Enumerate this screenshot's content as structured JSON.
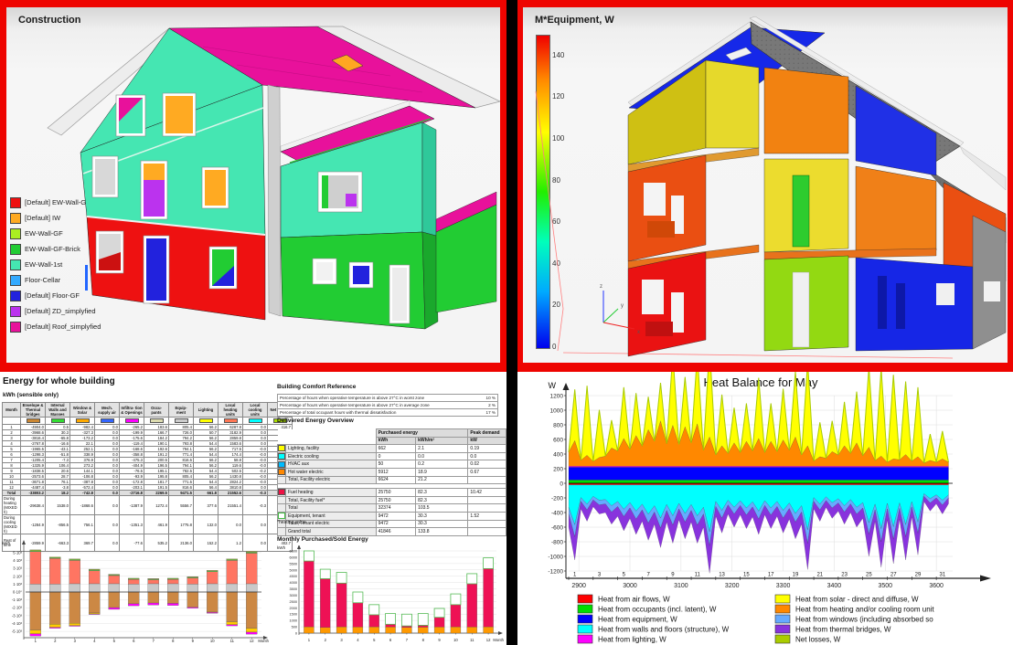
{
  "panels": {
    "construction": {
      "title": "Construction",
      "legend": [
        {
          "label": "[Default] EW-Wall-GF",
          "color": "#ee1111"
        },
        {
          "label": "[Default] IW",
          "color": "#ffaa22"
        },
        {
          "label": "EW-Wall-GF",
          "color": "#aaee22"
        },
        {
          "label": "EW-Wall-GF-Brick",
          "color": "#22cc33"
        },
        {
          "label": "EW-Wall-1st",
          "color": "#45e6b2"
        },
        {
          "label": "Floor-Cellar",
          "color": "#33aaff"
        },
        {
          "label": "[Default] Floor-GF",
          "color": "#2222dd"
        },
        {
          "label": "[Default] ZD_simplyfied",
          "color": "#bb33ee"
        },
        {
          "label": "[Default] Roof_simplyfied",
          "color": "#e8119b"
        }
      ]
    },
    "equipment3d": {
      "title": "M*Equipment, W",
      "colorbar_ticks": [
        140,
        120,
        100,
        80,
        60,
        40,
        20,
        0
      ],
      "colorbar_max": 150,
      "axis_labels": {
        "x": "x",
        "y": "y",
        "z": "z"
      }
    },
    "energy": {
      "title": "Energy for whole building",
      "subtitle": "kWh (sensible only)",
      "table": {
        "columns": [
          "Month",
          "Envelope & Thermal bridges",
          "Internal Walls and Masses",
          "Window & Solar",
          "Mech. supply air",
          "Infiltra- tion & Openings",
          "Occu- pants",
          "Equip- ment",
          "Lighting",
          "Local heating units",
          "Local cooling units",
          "Net losses"
        ],
        "swatches": [
          "#cc8833",
          "#33dd33",
          "#ffaa00",
          "#3366ff",
          "#ff00ff",
          "#dddcb0",
          "#cccccc",
          "#ffff00",
          "#ff7755",
          "#00ffff",
          "#aadd00"
        ],
        "months": [
          [
            "1",
            "-4904.0",
            "0.5",
            "-982.4",
            "0.0",
            "-265.2",
            "183.6",
            "805.4",
            "56.2",
            "6287.8",
            "0.0",
            "416.7"
          ],
          [
            "2",
            "-3968.6",
            "30.3",
            "-327.3",
            "0.0",
            "-199.9",
            "166.7",
            "726.0",
            "50.7",
            "3182.9",
            "0.0",
            "337.4"
          ],
          [
            "3",
            "-3816.4",
            "-65.8",
            "-173.2",
            "0.0",
            "-175.6",
            "184.2",
            "794.2",
            "56.2",
            "2859.8",
            "0.0",
            "336.0"
          ],
          [
            "4",
            "-2767.8",
            "-16.6",
            "22.1",
            "0.0",
            "-119.4",
            "190.1",
            "793.8",
            "54.4",
            "1583.6",
            "0.0",
            "258.4"
          ],
          [
            "5",
            "-1965.5",
            "-43.1",
            "252.1",
            "0.0",
            "-168.6",
            "192.6",
            "794.1",
            "56.2",
            "717.5",
            "-0.0",
            "215.1"
          ],
          [
            "6",
            "-1298.3",
            "-51.8",
            "338.9",
            "0.0",
            "-358.8",
            "191.2",
            "771.4",
            "54.4",
            "174.4",
            "-0.0",
            "178.8"
          ],
          [
            "7",
            "-1205.4",
            "-7.3",
            "376.9",
            "0.0",
            "-475.3",
            "200.5",
            "816.5",
            "56.2",
            "58.8",
            "-0.0",
            "177.9"
          ],
          [
            "8",
            "-1325.9",
            "106.4",
            "273.2",
            "0.0",
            "-404.9",
            "196.5",
            "794.1",
            "56.2",
            "119.6",
            "-0.0",
            "181.3"
          ],
          [
            "9",
            "-1838.5",
            "20.6",
            "144.1",
            "0.0",
            "-76.5",
            "195.1",
            "782.5",
            "54.4",
            "502.5",
            "-0.2",
            "197.4"
          ],
          [
            "10",
            "-2573.6",
            "28.7",
            "-106.8",
            "0.0",
            "-93.9",
            "195.8",
            "805.4",
            "56.2",
            "1430.8",
            "-0.0",
            "255.5"
          ],
          [
            "11",
            "-3671.8",
            "76.1",
            "-387.8",
            "0.0",
            "-172.8",
            "181.7",
            "771.5",
            "54.4",
            "2824.2",
            "-0.0",
            "328.5"
          ],
          [
            "12",
            "-4487.4",
            "-3.8",
            "-572.4",
            "0.0",
            "-203.1",
            "191.5",
            "816.6",
            "56.4",
            "3810.8",
            "0.0",
            "389.8"
          ]
        ],
        "total_row": [
          "Total",
          "-33803.2",
          "18.2",
          "-742.8",
          "0.0",
          "-2716.8",
          "2269.5",
          "9471.5",
          "661.8",
          "21552.6",
          "-0.3",
          "3272.8"
        ],
        "special_rows": [
          [
            "During heating (MIXED h)",
            "-29638.4",
            "1538.0",
            "-1868.6",
            "0.0",
            "-1387.9",
            "1272.4",
            "5556.7",
            "377.6",
            "21551.4",
            "-0.3",
            "2603.0"
          ],
          [
            "During cooling (MIXED h)",
            "-1284.9",
            "-856.5",
            "756.1",
            "0.0",
            "-1351.3",
            "461.9",
            "1775.8",
            "132.0",
            "0.0",
            "0.0",
            "267.1"
          ],
          [
            "Rest of time",
            "-2859.9",
            "-663.3",
            "369.7",
            "0.0",
            "-77.6",
            "535.2",
            "2136.0",
            "152.2",
            "1.2",
            "0.0",
            "402.7"
          ]
        ]
      }
    },
    "comfort": {
      "title": "Building Comfort Reference",
      "rows": [
        {
          "label": "Percentage of hours when operative temperature is above 27°C in worst zone",
          "value": "10 %"
        },
        {
          "label": "Percentage of hours when operative temperature is above 27°C in average zone",
          "value": "2 %"
        },
        {
          "label": "Percentage of total occupant hours with thermal dissatisfaction",
          "value": "17 %"
        }
      ]
    },
    "delivered": {
      "title": "Delivered Energy Overview",
      "header_purchased": "Purchased energy",
      "header_peak": "Peak demand",
      "unit_kwh": "kWh",
      "unit_kwhm2": "kWh/m²",
      "unit_kw": "kW",
      "footnote": "*heating value",
      "rows": [
        {
          "swatch": "#ffff00",
          "label": "Lighting, facility",
          "kwh": "662",
          "kwhm2": "2.1",
          "kw": "0.19"
        },
        {
          "swatch": "#00ffff",
          "label": "Electric cooling",
          "kwh": "0",
          "kwhm2": "0.0",
          "kw": "0.0"
        },
        {
          "swatch": "#00bbff",
          "label": "HVAC aux",
          "kwh": "50",
          "kwhm2": "0.2",
          "kw": "0.02"
        },
        {
          "swatch": "#ff8800",
          "label": "Hot water electric",
          "kwh": "5912",
          "kwhm2": "18.9",
          "kw": "0.67"
        },
        {
          "swatch": null,
          "label": "Total, Facility electric",
          "kwh": "6624",
          "kwhm2": "21.2",
          "kw": ""
        },
        {
          "spacer": true
        },
        {
          "swatch": "#ee1144",
          "label": "Fuel heating",
          "kwh": "25750",
          "kwhm2": "82.3",
          "kw": "10.42"
        },
        {
          "swatch": null,
          "label": "Total, Facility fuel*",
          "kwh": "25750",
          "kwhm2": "82.3",
          "kw": ""
        },
        {
          "swatch": null,
          "label": "Total",
          "kwh": "32374",
          "kwhm2": "103.5",
          "kw": ""
        },
        {
          "swatch": "#ffffff",
          "border": "#44bb44",
          "label": "Equipment, tenant",
          "kwh": "9472",
          "kwhm2": "30.3",
          "kw": "1.52"
        },
        {
          "swatch": null,
          "label": "Total, Tenant electric",
          "kwh": "9472",
          "kwhm2": "30.3",
          "kw": ""
        },
        {
          "swatch": null,
          "label": "Grand total",
          "kwh": "41846",
          "kwhm2": "133.8",
          "kw": ""
        }
      ]
    },
    "monthly_purchased": {
      "title": "Monthly Purchased/Sold Energy"
    },
    "heat_balance": {
      "legend_left": [
        {
          "label": "Heat from air flows, W",
          "color": "#ff0000"
        },
        {
          "label": "Heat from occupants (incl. latent), W",
          "color": "#00dd00"
        },
        {
          "label": "Heat from equipment, W",
          "color": "#0000ff"
        },
        {
          "label": "Heat from walls and floors (structure), W",
          "color": "#00ffff"
        },
        {
          "label": "Heat from lighting, W",
          "color": "#ff00ff"
        }
      ],
      "legend_right": [
        {
          "label": "Heat from solar - direct and diffuse, W",
          "color": "#ffff00"
        },
        {
          "label": "Heat from heating and/or cooling room unit",
          "color": "#ff8800"
        },
        {
          "label": "Heat from windows (including absorbed so",
          "color": "#66aaff"
        },
        {
          "label": "Heat from thermal bridges, W",
          "color": "#8833dd"
        },
        {
          "label": "Net losses, W",
          "color": "#aacc00"
        }
      ]
    }
  },
  "chart_data": [
    {
      "type": "bar",
      "title": "",
      "ylabel": "kWh",
      "xlabel": "Month",
      "categories": [
        "1",
        "2",
        "3",
        "4",
        "5",
        "6",
        "7",
        "8",
        "9",
        "10",
        "11",
        "12"
      ],
      "ylim": [
        -5800,
        5800
      ],
      "ytick_values": [
        5000,
        4000,
        3000,
        2000,
        1000,
        0,
        -1000,
        -2000,
        -3000,
        -4000,
        -5000
      ],
      "ytick_labels": [
        "5·10³",
        "4·10³",
        "3·10³",
        "2·10³",
        "1·10³",
        "0·10⁰",
        "-1·10³",
        "-2·10³",
        "-3·10³",
        "-4·10³",
        "-5·10³"
      ],
      "series": [
        {
          "name": "Occupants, equipment and lighting gains",
          "color": "#c9c9c9",
          "values": [
            1000,
            1000,
            1050,
            1050,
            1050,
            1000,
            1050,
            1050,
            1000,
            1050,
            1050,
            1050
          ]
        },
        {
          "name": "Local heating units",
          "color": "#ff7562",
          "values": [
            4130,
            3260,
            2960,
            1660,
            1040,
            610,
            510,
            560,
            790,
            1520,
            2960,
            3880
          ]
        },
        {
          "name": "Internal walls and masses",
          "color": "#55cc44",
          "values": [
            150,
            130,
            130,
            130,
            110,
            100,
            100,
            100,
            110,
            120,
            130,
            150
          ]
        },
        {
          "name": "Window & solar",
          "color": "#ffee00",
          "values": [
            70,
            60,
            60,
            60,
            50,
            40,
            40,
            40,
            50,
            60,
            60,
            70
          ]
        },
        {
          "name": "Envelope & thermal bridges",
          "color": "#cc8844",
          "values": [
            -4850,
            -4100,
            -3970,
            -2670,
            -1980,
            -1500,
            -1400,
            -1450,
            -1930,
            -2520,
            -3800,
            -4620
          ]
        },
        {
          "name": "Window losses",
          "color": "#ffcc00",
          "values": [
            -450,
            -380,
            -300,
            -120,
            0,
            0,
            0,
            0,
            0,
            -80,
            -350,
            -480
          ]
        },
        {
          "name": "Infiltration & openings",
          "color": "#ff00ff",
          "values": [
            -300,
            -120,
            -80,
            -60,
            -220,
            -250,
            -250,
            -250,
            -120,
            -100,
            -150,
            -250
          ]
        }
      ]
    },
    {
      "type": "bar",
      "title": "Monthly Purchased/Sold Energy",
      "ylabel": "kWh",
      "xlabel": "Month",
      "categories": [
        "1",
        "2",
        "3",
        "4",
        "5",
        "6",
        "7",
        "8",
        "9",
        "10",
        "11",
        "12"
      ],
      "ylim": [
        0,
        6500
      ],
      "ytick_step": 500,
      "series": [
        {
          "name": "Hot water electric",
          "color": "#ff9900",
          "values": [
            500,
            450,
            500,
            480,
            500,
            480,
            450,
            470,
            480,
            500,
            480,
            500
          ]
        },
        {
          "name": "Fuel heating",
          "color": "#ee1155",
          "values": [
            5200,
            3850,
            3450,
            1920,
            950,
            220,
            120,
            150,
            770,
            1750,
            3420,
            4600
          ]
        },
        {
          "name": "Equipment, tenant",
          "color": "#ffffff",
          "stroke": "#55bb55",
          "values": [
            800,
            750,
            850,
            850,
            800,
            850,
            930,
            930,
            700,
            850,
            800,
            850
          ]
        }
      ]
    },
    {
      "type": "area",
      "title": "Heat Balance for May",
      "ylabel": "W",
      "ylim": [
        -1200,
        1200
      ],
      "ytick_step": 200,
      "x_hours": [
        2880,
        3632
      ],
      "hour_ticks": [
        2900,
        3000,
        3100,
        3200,
        3300,
        3400,
        3500,
        3600
      ],
      "day_ticks": [
        1,
        3,
        5,
        7,
        9,
        11,
        13,
        15,
        17,
        19,
        21,
        23,
        25,
        27,
        29,
        31
      ],
      "const_layers": {
        "occupants": 45,
        "equipment": 175,
        "lighting": 14,
        "air_flows": 22
      },
      "daily": {
        "solar_peak": [
          700,
          950,
          650,
          380,
          700,
          580,
          450,
          520,
          980,
          680,
          950,
          1250,
          700,
          480,
          520,
          830,
          520,
          700,
          900,
          1150,
          470,
          420,
          600,
          700,
          1100,
          1200,
          1150,
          1000,
          950,
          360,
          380
        ],
        "heating_noon": [
          350,
          150,
          120,
          250,
          380,
          420,
          500,
          620,
          560,
          540,
          580,
          400,
          280,
          320,
          340,
          380,
          340,
          360,
          400,
          280,
          130,
          200,
          280,
          320,
          260,
          140,
          100,
          160,
          130,
          80,
          100
        ],
        "neg_spike": [
          1050,
          520,
          420,
          560,
          650,
          700,
          780,
          880,
          820,
          760,
          820,
          1230,
          680,
          600,
          620,
          700,
          620,
          680,
          760,
          1180,
          520,
          480,
          560,
          600,
          1000,
          1150,
          1100,
          1050,
          980,
          380,
          420
        ],
        "neg_shallow": [
          600,
          350,
          320,
          400,
          450,
          480,
          520,
          560,
          530,
          500,
          530,
          600,
          450,
          420,
          430,
          460,
          430,
          450,
          490,
          560,
          350,
          330,
          380,
          400,
          480,
          520,
          500,
          490,
          460,
          250,
          280
        ]
      },
      "neg_fractions": {
        "structure": 0.53,
        "windows": 0.16,
        "bridges": 0.31
      },
      "colors": {
        "occupants": "#00dd00",
        "equipment": "#0000ff",
        "lighting": "#ff00ff",
        "heating": "#ff8800",
        "solar": "#ffff00",
        "air_flows": "#ff0000",
        "structure": "#00ffff",
        "windows": "#66aaff",
        "bridges": "#8833dd",
        "net_losses": "#aacc00"
      }
    }
  ]
}
